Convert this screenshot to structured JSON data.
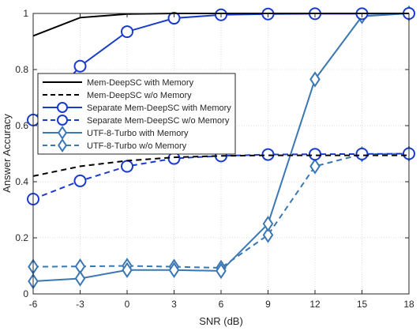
{
  "chart_data": {
    "type": "line",
    "xlabel": "SNR (dB)",
    "ylabel": "Answer Accuracy",
    "xlim": [
      -6,
      18
    ],
    "ylim": [
      0,
      1
    ],
    "x_ticks": [
      "-6",
      "-3",
      "0",
      "3",
      "6",
      "9",
      "12",
      "15",
      "18"
    ],
    "y_ticks": [
      "0",
      "0.2",
      "0.4",
      "0.6",
      "0.8",
      "1"
    ],
    "grid": true,
    "legend_position": "upper-left",
    "x": [
      -6,
      -3,
      0,
      3,
      6,
      9,
      12,
      15,
      18
    ],
    "series": [
      {
        "name": "Mem-DeepSC with Memory",
        "color": "#000000",
        "dash": "solid",
        "marker": "none",
        "values": [
          0.92,
          0.985,
          0.998,
          1.0,
          1.0,
          1.0,
          1.0,
          1.0,
          1.0
        ]
      },
      {
        "name": "Mem-DeepSC w/o Memory",
        "color": "#000000",
        "dash": "dashed",
        "marker": "none",
        "values": [
          0.42,
          0.455,
          0.475,
          0.487,
          0.492,
          0.494,
          0.494,
          0.494,
          0.494
        ]
      },
      {
        "name": "Separate Mem-DeepSC with Memory",
        "color": "#1a3ccc",
        "dash": "solid",
        "marker": "circle",
        "values": [
          0.62,
          0.812,
          0.935,
          0.983,
          0.995,
          0.998,
          0.999,
          0.999,
          1.0
        ]
      },
      {
        "name": "Separate Mem-DeepSC w/o Memory",
        "color": "#1a3ccc",
        "dash": "dashed",
        "marker": "circle",
        "values": [
          0.338,
          0.403,
          0.455,
          0.483,
          0.492,
          0.497,
          0.498,
          0.499,
          0.5
        ]
      },
      {
        "name": "UTF-8-Turbo with Memory",
        "color": "#3a78b4",
        "dash": "solid",
        "marker": "diamond",
        "values": [
          0.045,
          0.055,
          0.085,
          0.085,
          0.082,
          0.25,
          0.765,
          0.99,
          1.0
        ]
      },
      {
        "name": "UTF-8-Turbo w/o Memory",
        "color": "#3a78b4",
        "dash": "dashed",
        "marker": "diamond",
        "values": [
          0.097,
          0.098,
          0.1,
          0.097,
          0.093,
          0.21,
          0.455,
          0.498,
          0.5
        ]
      }
    ]
  }
}
